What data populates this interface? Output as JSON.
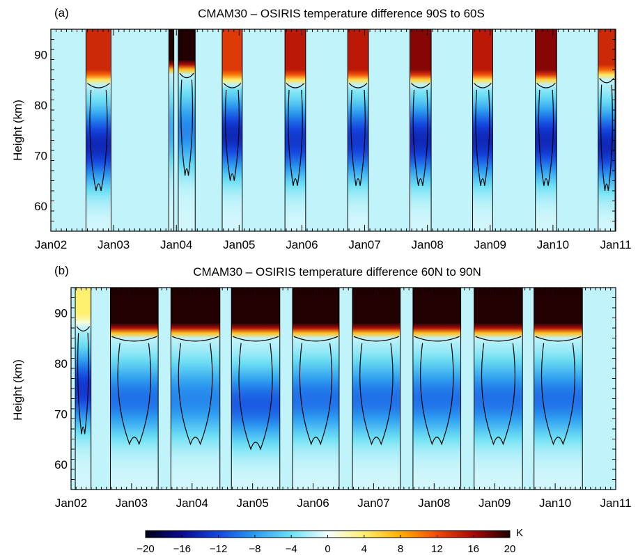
{
  "figure": {
    "colorbar": {
      "unit": "K",
      "min": -20,
      "max": 20,
      "ticks": [
        -20,
        -16,
        -12,
        -8,
        -4,
        0,
        4,
        8,
        12,
        16,
        20
      ],
      "stops": [
        {
          "v": -20,
          "color": "#000018"
        },
        {
          "v": -16,
          "color": "#0a0a90"
        },
        {
          "v": -12,
          "color": "#1446e0"
        },
        {
          "v": -8,
          "color": "#2c9cf0"
        },
        {
          "v": -4,
          "color": "#6ee0f4"
        },
        {
          "v": 0,
          "color": "#f2fefe"
        },
        {
          "v": 4,
          "color": "#fff070"
        },
        {
          "v": 8,
          "color": "#ffb000"
        },
        {
          "v": 12,
          "color": "#f04a08"
        },
        {
          "v": 16,
          "color": "#a80808"
        },
        {
          "v": 20,
          "color": "#200000"
        }
      ]
    }
  },
  "chart_data": [
    {
      "type": "heatmap",
      "panel_label": "(a)",
      "title": "CMAM30 – OSIRIS temperature difference 90S to 60S",
      "ylabel": "Height (km)",
      "ylim": [
        55,
        95
      ],
      "yticks": [
        60,
        70,
        80,
        90
      ],
      "xlim": [
        2002.0,
        2011.0
      ],
      "xtick_labels": [
        "Jan02",
        "Jan03",
        "Jan04",
        "Jan05",
        "Jan06",
        "Jan07",
        "Jan08",
        "Jan09",
        "Jan10",
        "Jan11"
      ],
      "xtick_values": [
        2002,
        2003,
        2004,
        2005,
        2006,
        2007,
        2008,
        2009,
        2010,
        2011
      ],
      "contour_levels": [
        -12,
        -8,
        -4,
        0,
        4,
        8,
        12
      ],
      "background_value": -1.5,
      "strips": [
        {
          "start": 2002.56,
          "end": 2002.96,
          "upper_warm": 14,
          "warm_from": 84,
          "cold_peak": -13,
          "cold_center": 72
        },
        {
          "start": 2003.88,
          "end": 2003.96,
          "upper_warm": 20,
          "warm_from": 86,
          "cold_peak": -6,
          "cold_center": 75
        },
        {
          "start": 2004.03,
          "end": 2004.3,
          "upper_warm": 20,
          "warm_from": 86,
          "cold_peak": -8,
          "cold_center": 75
        },
        {
          "start": 2004.73,
          "end": 2005.05,
          "upper_warm": 13,
          "warm_from": 84,
          "cold_peak": -13,
          "cold_center": 74
        },
        {
          "start": 2005.73,
          "end": 2006.06,
          "upper_warm": 15,
          "warm_from": 84,
          "cold_peak": -12,
          "cold_center": 73
        },
        {
          "start": 2006.73,
          "end": 2007.06,
          "upper_warm": 15,
          "warm_from": 84,
          "cold_peak": -12,
          "cold_center": 73
        },
        {
          "start": 2007.72,
          "end": 2008.06,
          "upper_warm": 17,
          "warm_from": 84,
          "cold_peak": -13,
          "cold_center": 73
        },
        {
          "start": 2008.72,
          "end": 2009.04,
          "upper_warm": 15,
          "warm_from": 84,
          "cold_peak": -13,
          "cold_center": 73
        },
        {
          "start": 2009.72,
          "end": 2010.06,
          "upper_warm": 17,
          "warm_from": 84,
          "cold_peak": -13,
          "cold_center": 73
        },
        {
          "start": 2010.72,
          "end": 2010.99,
          "upper_warm": 14,
          "warm_from": 85,
          "cold_peak": -13,
          "cold_center": 72
        }
      ]
    },
    {
      "type": "heatmap",
      "panel_label": "(b)",
      "title": "CMAM30 – OSIRIS temperature difference 60N to 90N",
      "ylabel": "Height (km)",
      "ylim": [
        55,
        95
      ],
      "yticks": [
        60,
        70,
        80,
        90
      ],
      "xlim": [
        2002.0,
        2011.0
      ],
      "xtick_labels": [
        "Jan02",
        "Jan03",
        "Jan04",
        "Jan05",
        "Jan06",
        "Jan07",
        "Jan08",
        "Jan09",
        "Jan10",
        "Jan11"
      ],
      "xtick_values": [
        2002,
        2003,
        2004,
        2005,
        2006,
        2007,
        2008,
        2009,
        2010,
        2011
      ],
      "contour_levels": [
        -12,
        -8,
        -4,
        0,
        4,
        8,
        12
      ],
      "background_value": -1.5,
      "strips": [
        {
          "start": 2002.07,
          "end": 2002.33,
          "upper_warm": 4,
          "warm_from": 87,
          "cold_peak": -12,
          "cold_center": 75
        },
        {
          "start": 2002.65,
          "end": 2003.44,
          "upper_warm": 20,
          "warm_from": 85,
          "cold_peak": -9,
          "cold_center": 73
        },
        {
          "start": 2003.65,
          "end": 2004.46,
          "upper_warm": 20,
          "warm_from": 85,
          "cold_peak": -8,
          "cold_center": 73
        },
        {
          "start": 2004.65,
          "end": 2005.45,
          "upper_warm": 20,
          "warm_from": 85,
          "cold_peak": -10,
          "cold_center": 72
        },
        {
          "start": 2005.66,
          "end": 2006.43,
          "upper_warm": 20,
          "warm_from": 85,
          "cold_peak": -9,
          "cold_center": 73
        },
        {
          "start": 2006.65,
          "end": 2007.44,
          "upper_warm": 20,
          "warm_from": 85,
          "cold_peak": -9,
          "cold_center": 73
        },
        {
          "start": 2007.65,
          "end": 2008.44,
          "upper_warm": 20,
          "warm_from": 85,
          "cold_peak": -9,
          "cold_center": 73
        },
        {
          "start": 2008.66,
          "end": 2009.46,
          "upper_warm": 20,
          "warm_from": 85,
          "cold_peak": -9,
          "cold_center": 73
        },
        {
          "start": 2009.65,
          "end": 2010.45,
          "upper_warm": 20,
          "warm_from": 85,
          "cold_peak": -9,
          "cold_center": 73
        }
      ]
    }
  ]
}
